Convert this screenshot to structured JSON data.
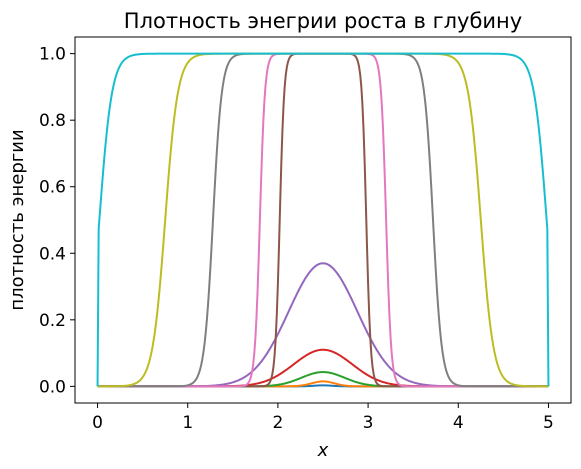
{
  "chart_data": {
    "type": "line",
    "title": "Плотность энегрии роста в глубину",
    "xlabel": "x",
    "ylabel": "плотность энергии",
    "xlim": [
      -0.25,
      5.25
    ],
    "ylim": [
      -0.05,
      1.05
    ],
    "xticks": [
      0,
      1,
      2,
      3,
      4,
      5
    ],
    "xtick_labels": [
      "0",
      "1",
      "2",
      "3",
      "4",
      "5"
    ],
    "yticks": [
      0.0,
      0.2,
      0.4,
      0.6,
      0.8,
      1.0
    ],
    "ytick_labels": [
      "0.0",
      "0.2",
      "0.4",
      "0.6",
      "0.8",
      "1.0"
    ],
    "grid": false,
    "legend": "none",
    "center_x": 2.5,
    "series": [
      {
        "color": "#1f77b4",
        "peak": 0.003,
        "x_at_half_height": [
          2.38,
          2.62
        ]
      },
      {
        "color": "#ff7f0e",
        "peak": 0.015,
        "x_at_half_height": [
          2.35,
          2.65
        ]
      },
      {
        "color": "#2ca02c",
        "peak": 0.043,
        "x_at_half_height": [
          2.22,
          2.78
        ]
      },
      {
        "color": "#d62728",
        "peak": 0.11,
        "x_at_half_height": [
          2.12,
          2.88
        ]
      },
      {
        "color": "#9467bd",
        "peak": 0.37,
        "x_at_half_height": [
          2.05,
          2.95
        ]
      },
      {
        "color": "#8c564b",
        "peak": 1.0,
        "x_at_half_height": [
          2.02,
          2.98
        ]
      },
      {
        "color": "#e377c2",
        "peak": 1.0,
        "x_at_half_height": [
          1.8,
          3.2
        ]
      },
      {
        "color": "#7f7f7f",
        "peak": 1.0,
        "x_at_half_height": [
          1.28,
          3.72
        ]
      },
      {
        "color": "#bcbd22",
        "peak": 1.0,
        "x_at_half_height": [
          0.75,
          4.25
        ]
      },
      {
        "color": "#17becf",
        "peak": 1.0,
        "x_at_half_height": [
          0.02,
          4.98
        ]
      }
    ]
  }
}
